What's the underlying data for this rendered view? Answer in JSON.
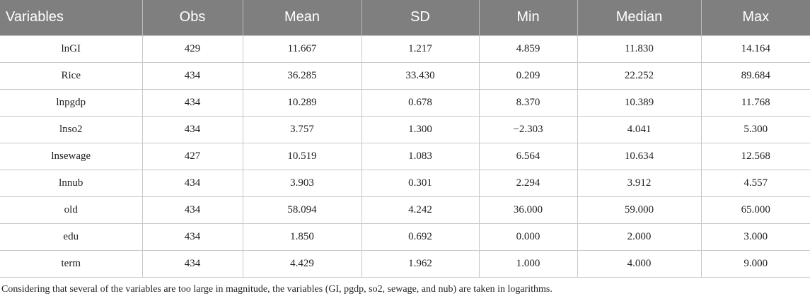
{
  "table": {
    "columns": [
      "Variables",
      "Obs",
      "Mean",
      "SD",
      "Min",
      "Median",
      "Max"
    ],
    "rows": [
      [
        "lnGI",
        "429",
        "11.667",
        "1.217",
        "4.859",
        "11.830",
        "14.164"
      ],
      [
        "Rice",
        "434",
        "36.285",
        "33.430",
        "0.209",
        "22.252",
        "89.684"
      ],
      [
        "lnpgdp",
        "434",
        "10.289",
        "0.678",
        "8.370",
        "10.389",
        "11.768"
      ],
      [
        "lnso2",
        "434",
        "3.757",
        "1.300",
        "−2.303",
        "4.041",
        "5.300"
      ],
      [
        "lnsewage",
        "427",
        "10.519",
        "1.083",
        "6.564",
        "10.634",
        "12.568"
      ],
      [
        "lnnub",
        "434",
        "3.903",
        "0.301",
        "2.294",
        "3.912",
        "4.557"
      ],
      [
        "old",
        "434",
        "58.094",
        "4.242",
        "36.000",
        "59.000",
        "65.000"
      ],
      [
        "edu",
        "434",
        "1.850",
        "0.692",
        "0.000",
        "2.000",
        "3.000"
      ],
      [
        "term",
        "434",
        "4.429",
        "1.962",
        "1.000",
        "4.000",
        "9.000"
      ]
    ]
  },
  "footnote": "Considering that several of the variables are too large in magnitude, the variables (GI, pgdp, so2, sewage, and nub) are taken in logarithms.",
  "colors": {
    "header_bg": "#7f7f7f",
    "header_text": "#ffffff",
    "grid_line": "#c8c8c8"
  }
}
